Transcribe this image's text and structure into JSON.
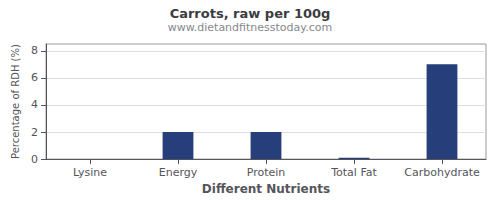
{
  "chart_data": {
    "type": "bar",
    "title": "Carrots, raw per 100g",
    "subtitle": "www.dietandfitnesstoday.com",
    "xlabel": "Different Nutrients",
    "ylabel": "Percentage of RDH (%)",
    "categories": [
      "Lysine",
      "Energy",
      "Protein",
      "Total Fat",
      "Carbohydrate"
    ],
    "values": [
      0.0,
      2.0,
      2.0,
      0.1,
      7.0
    ],
    "color": "#263f7a",
    "ylim": [
      0,
      8.5
    ],
    "yticks": [
      0,
      2,
      4,
      6,
      8
    ],
    "grid": true
  }
}
